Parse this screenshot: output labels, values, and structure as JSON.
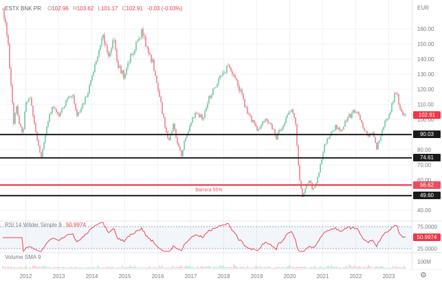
{
  "legend": {
    "symbol": "ESTX BNK PR",
    "open_label": "O",
    "open": "102.96",
    "high_label": "H",
    "high": "103.62",
    "low_label": "L",
    "low": "101.17",
    "close_label": "C",
    "close": "102.91",
    "change": "-0.03 (-0.03%)"
  },
  "rsi_legend": {
    "title": "RSI 14 Wilder Simple 9",
    "value": "50.9974"
  },
  "volume_legend": {
    "title": "Volume SMA 9"
  },
  "price_axis": {
    "unit": "EUR",
    "ticks": [
      160,
      150,
      140,
      130,
      120,
      110,
      100,
      90,
      80,
      70,
      60,
      50,
      40
    ]
  },
  "rsi_axis": {
    "upper_label": "75.0000",
    "lower_label": "25.0000",
    "value_label": "50.9974"
  },
  "volume_axis": {
    "tick_label": "100M"
  },
  "time_axis": {
    "years": [
      "2012",
      "2013",
      "2014",
      "2015",
      "2016",
      "2017",
      "2018",
      "2019",
      "2020",
      "2021",
      "2022",
      "2023"
    ]
  },
  "colors": {
    "background": "#ffffff",
    "grid": "#f0f2f5",
    "separator": "#e0e3eb",
    "up": "#6ec79e",
    "down": "#ef7f8b",
    "text": "#787b86",
    "value_red": "#f23645",
    "last_badge": "#f23645",
    "rsi_line": "#e8454f",
    "rsi_band_border": "#93a6c9",
    "rsi_band_fill": "rgba(70,111,180,0.07)"
  },
  "chart_data": {
    "type": "candlestick",
    "title": "ESTX BNK PR",
    "unit": "EUR",
    "visible_price_range": [
      33,
      179
    ],
    "visible_year_range": [
      2011.3,
      2023.6
    ],
    "xlabel": "year",
    "ylabel": "EUR",
    "last": {
      "open": 102.96,
      "high": 103.62,
      "low": 101.17,
      "close": 102.91,
      "change": -0.03,
      "change_pct": -0.03
    },
    "price_anchors": [
      [
        2011.3,
        172
      ],
      [
        2011.39,
        163
      ],
      [
        2011.47,
        150
      ],
      [
        2011.53,
        128
      ],
      [
        2011.64,
        96
      ],
      [
        2011.72,
        110
      ],
      [
        2011.8,
        98
      ],
      [
        2011.91,
        91
      ],
      [
        2012.01,
        112
      ],
      [
        2012.14,
        116
      ],
      [
        2012.26,
        96
      ],
      [
        2012.36,
        83
      ],
      [
        2012.47,
        76
      ],
      [
        2012.59,
        90
      ],
      [
        2012.72,
        105
      ],
      [
        2012.84,
        108
      ],
      [
        2012.99,
        101
      ],
      [
        2013.2,
        112
      ],
      [
        2013.41,
        118
      ],
      [
        2013.55,
        101
      ],
      [
        2013.72,
        109
      ],
      [
        2013.93,
        122
      ],
      [
        2014.14,
        138
      ],
      [
        2014.34,
        155
      ],
      [
        2014.51,
        143
      ],
      [
        2014.66,
        152
      ],
      [
        2014.8,
        135
      ],
      [
        2014.97,
        129
      ],
      [
        2015.18,
        141
      ],
      [
        2015.39,
        152
      ],
      [
        2015.53,
        158
      ],
      [
        2015.7,
        146
      ],
      [
        2015.84,
        138
      ],
      [
        2016.01,
        121
      ],
      [
        2016.18,
        100
      ],
      [
        2016.32,
        86
      ],
      [
        2016.47,
        96
      ],
      [
        2016.59,
        85
      ],
      [
        2016.72,
        77
      ],
      [
        2016.84,
        88
      ],
      [
        2017.01,
        98
      ],
      [
        2017.16,
        104
      ],
      [
        2017.36,
        101
      ],
      [
        2017.57,
        115
      ],
      [
        2017.78,
        124
      ],
      [
        2017.99,
        130
      ],
      [
        2018.14,
        136
      ],
      [
        2018.3,
        128
      ],
      [
        2018.51,
        118
      ],
      [
        2018.72,
        105
      ],
      [
        2018.89,
        98
      ],
      [
        2019.03,
        92
      ],
      [
        2019.24,
        100
      ],
      [
        2019.45,
        95
      ],
      [
        2019.59,
        88
      ],
      [
        2019.76,
        95
      ],
      [
        2019.93,
        102
      ],
      [
        2020.07,
        106
      ],
      [
        2020.18,
        96
      ],
      [
        2020.28,
        62
      ],
      [
        2020.39,
        49
      ],
      [
        2020.49,
        56
      ],
      [
        2020.59,
        60
      ],
      [
        2020.7,
        53
      ],
      [
        2020.8,
        57
      ],
      [
        2020.93,
        70
      ],
      [
        2021.05,
        83
      ],
      [
        2021.22,
        90
      ],
      [
        2021.39,
        96
      ],
      [
        2021.53,
        92
      ],
      [
        2021.68,
        98
      ],
      [
        2021.8,
        102
      ],
      [
        2021.95,
        105
      ],
      [
        2022.09,
        103
      ],
      [
        2022.22,
        95
      ],
      [
        2022.36,
        88
      ],
      [
        2022.51,
        92
      ],
      [
        2022.64,
        81
      ],
      [
        2022.78,
        92
      ],
      [
        2022.93,
        100
      ],
      [
        2023.05,
        105
      ],
      [
        2023.2,
        120
      ],
      [
        2023.3,
        112
      ],
      [
        2023.41,
        104
      ],
      [
        2023.51,
        102.9
      ]
    ],
    "levels": [
      {
        "price": 90.03,
        "color": "#1b1b1b",
        "style": "solid",
        "width": 2
      },
      {
        "price": 74.61,
        "color": "#1b1b1b",
        "style": "solid",
        "width": 2
      },
      {
        "price": 56.62,
        "color": "#ef4b5e",
        "style": "solid",
        "width": 2.5,
        "label": "Barrera 55%",
        "label_year": 2017.55
      },
      {
        "price": 49.6,
        "color": "#1b1b1b",
        "style": "solid",
        "width": 2
      }
    ],
    "rsi": {
      "period": 14,
      "band": [
        25,
        75
      ],
      "last_value": 50.9974
    },
    "seed": 20
  }
}
